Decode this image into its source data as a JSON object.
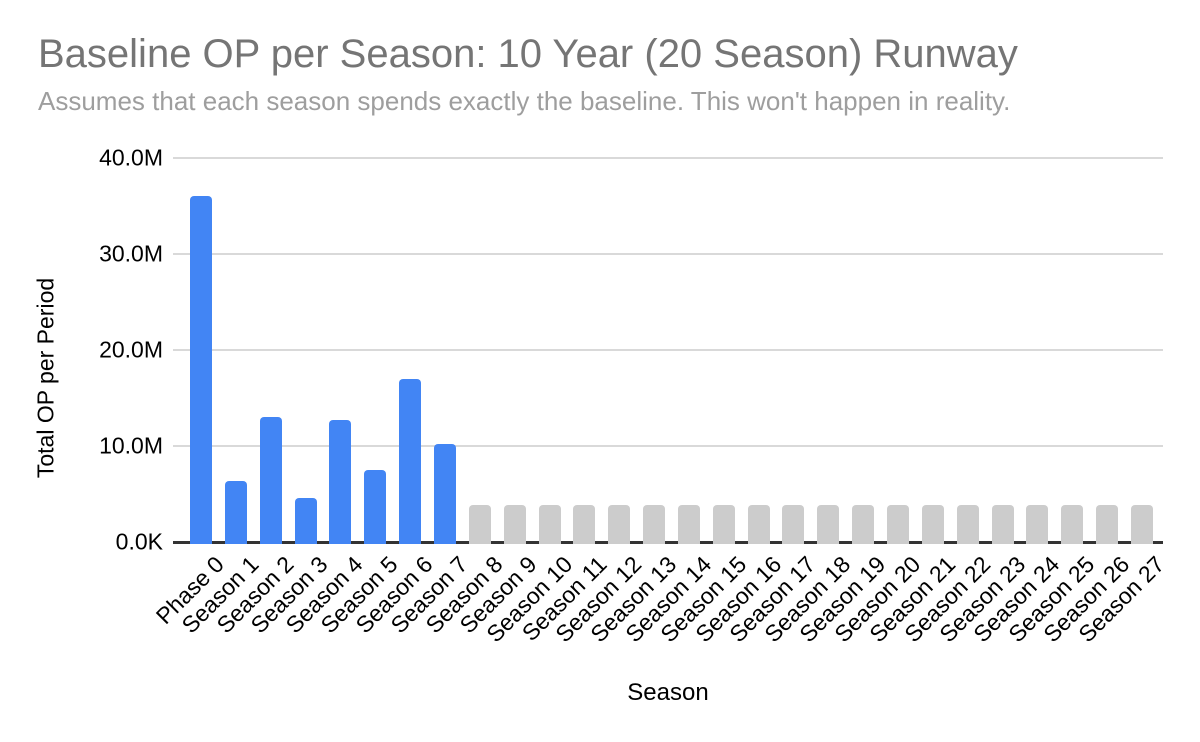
{
  "chart_data": {
    "type": "bar",
    "title": "Baseline OP per Season: 10 Year (20 Season) Runway",
    "subtitle": "Assumes that each season spends exactly the baseline. This won't happen in reality.",
    "xlabel": "Season",
    "ylabel": "Total OP per Period",
    "categories": [
      "Phase 0",
      "Season 1",
      "Season 2",
      "Season 3",
      "Season 4",
      "Season 5",
      "Season 6",
      "Season 7",
      "Season 8",
      "Season 9",
      "Season 10",
      "Season 11",
      "Season 12",
      "Season 13",
      "Season 14",
      "Season 15",
      "Season 16",
      "Season 17",
      "Season 18",
      "Season 19",
      "Season 20",
      "Season 21",
      "Season 22",
      "Season 23",
      "Season 24",
      "Season 25",
      "Season 26",
      "Season 27"
    ],
    "values": [
      36000000,
      6400000,
      13000000,
      4600000,
      12700000,
      7500000,
      17000000,
      10200000,
      3900000,
      3900000,
      3900000,
      3900000,
      3900000,
      3900000,
      3900000,
      3900000,
      3900000,
      3900000,
      3900000,
      3900000,
      3900000,
      3900000,
      3900000,
      3900000,
      3900000,
      3900000,
      3900000,
      3900000
    ],
    "bar_colors": [
      "#4285f4",
      "#4285f4",
      "#4285f4",
      "#4285f4",
      "#4285f4",
      "#4285f4",
      "#4285f4",
      "#4285f4",
      "#cccccc",
      "#cccccc",
      "#cccccc",
      "#cccccc",
      "#cccccc",
      "#cccccc",
      "#cccccc",
      "#cccccc",
      "#cccccc",
      "#cccccc",
      "#cccccc",
      "#cccccc",
      "#cccccc",
      "#cccccc",
      "#cccccc",
      "#cccccc",
      "#cccccc",
      "#cccccc",
      "#cccccc",
      "#cccccc"
    ],
    "ylim": [
      0,
      40000000
    ],
    "yticks": [
      {
        "value": 0,
        "label": "0.0K"
      },
      {
        "value": 10000000,
        "label": "10.0M"
      },
      {
        "value": 20000000,
        "label": "20.0M"
      },
      {
        "value": 30000000,
        "label": "30.0M"
      },
      {
        "value": 40000000,
        "label": "40.0M"
      }
    ],
    "grid": true,
    "legend_position": "none",
    "colors": {
      "bar_blue": "#4285f4",
      "bar_gray": "#cccccc",
      "title": "#757575",
      "subtitle": "#9e9e9e",
      "gridline": "#d9d9d9",
      "axis_line": "#333333",
      "tick_label": "#000000",
      "background": "#ffffff"
    }
  }
}
